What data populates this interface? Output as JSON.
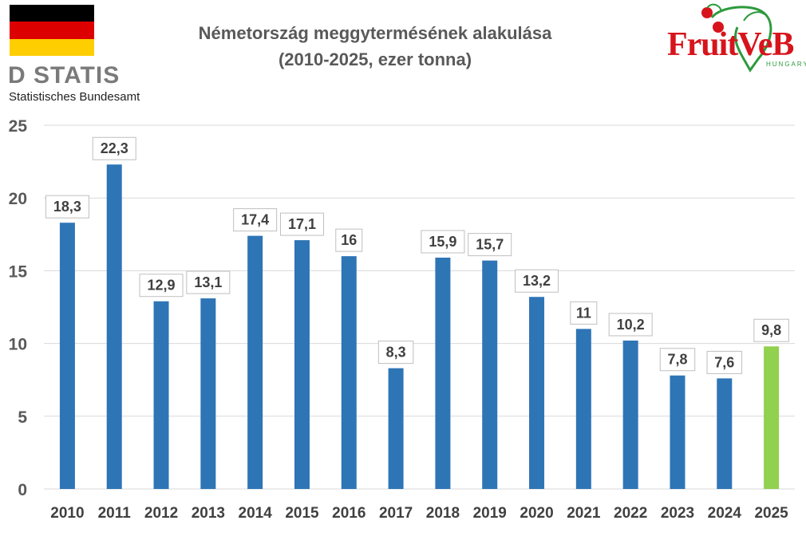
{
  "chart_data": {
    "type": "bar",
    "title": "Németország meggytermésének alakulása",
    "subtitle": "(2010-2025, ezer tonna)",
    "categories": [
      "2010",
      "2011",
      "2012",
      "2013",
      "2014",
      "2015",
      "2016",
      "2017",
      "2018",
      "2019",
      "2020",
      "2021",
      "2022",
      "2023",
      "2024",
      "2025"
    ],
    "values": [
      18.3,
      22.3,
      12.9,
      13.1,
      17.4,
      17.1,
      16,
      8.3,
      15.9,
      15.7,
      13.2,
      11,
      10.2,
      7.8,
      7.6,
      9.8
    ],
    "value_labels": [
      "18,3",
      "22,3",
      "12,9",
      "13,1",
      "17,4",
      "17,1",
      "16",
      "8,3",
      "15,9",
      "15,7",
      "13,2",
      "11",
      "10,2",
      "7,8",
      "7,6",
      "9,8"
    ],
    "ylim": [
      0,
      25
    ],
    "yticks": [
      0,
      5,
      10,
      15,
      20,
      25
    ],
    "bar_color": "#2e75b6",
    "highlight_color": "#92d050",
    "highlight_index": 15,
    "xlabel": "",
    "ylabel": "",
    "grid": true
  },
  "logos": {
    "destatis_word": "D  STATIS",
    "destatis_sub": "Statistisches Bundesamt",
    "flag_colors": [
      "#000000",
      "#dd0000",
      "#ffce00"
    ],
    "fruitveb_word": "FruitVeB",
    "fruitveb_sub": "HUNGARY"
  }
}
